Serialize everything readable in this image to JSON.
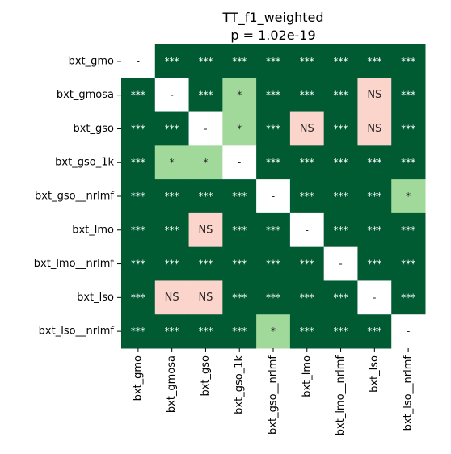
{
  "chart_data": {
    "type": "heatmap",
    "title": "TT_f1_weighted",
    "subtitle": "p = 1.02e-19",
    "xlabel": "",
    "ylabel": "",
    "labels": [
      "bxt_gmo",
      "bxt_gmosa",
      "bxt_gso",
      "bxt_gso_1k",
      "bxt_gso__nrlmf",
      "bxt_lmo",
      "bxt_lmo__nrlmf",
      "bxt_lso",
      "bxt_lso__nrlmf"
    ],
    "matrix": [
      [
        "-",
        "***",
        "***",
        "***",
        "***",
        "***",
        "***",
        "***",
        "***"
      ],
      [
        "***",
        "-",
        "***",
        "*",
        "***",
        "***",
        "***",
        "NS",
        "***"
      ],
      [
        "***",
        "***",
        "-",
        "*",
        "***",
        "NS",
        "***",
        "NS",
        "***"
      ],
      [
        "***",
        "*",
        "*",
        "-",
        "***",
        "***",
        "***",
        "***",
        "***"
      ],
      [
        "***",
        "***",
        "***",
        "***",
        "-",
        "***",
        "***",
        "***",
        "*"
      ],
      [
        "***",
        "***",
        "NS",
        "***",
        "***",
        "-",
        "***",
        "***",
        "***"
      ],
      [
        "***",
        "***",
        "***",
        "***",
        "***",
        "***",
        "-",
        "***",
        "***"
      ],
      [
        "***",
        "NS",
        "NS",
        "***",
        "***",
        "***",
        "***",
        "-",
        "***"
      ],
      [
        "***",
        "***",
        "***",
        "***",
        "*",
        "***",
        "***",
        "***",
        "-"
      ]
    ],
    "colors": {
      "***": "#005a32",
      "*": "#a1d99b",
      "NS": "#fbd5cc",
      "-": "#ffffff"
    },
    "text_colors": {
      "***": "#ffffff",
      "*": "#262626",
      "NS": "#262626",
      "-": "#262626"
    },
    "grid": false,
    "legend": "none"
  }
}
